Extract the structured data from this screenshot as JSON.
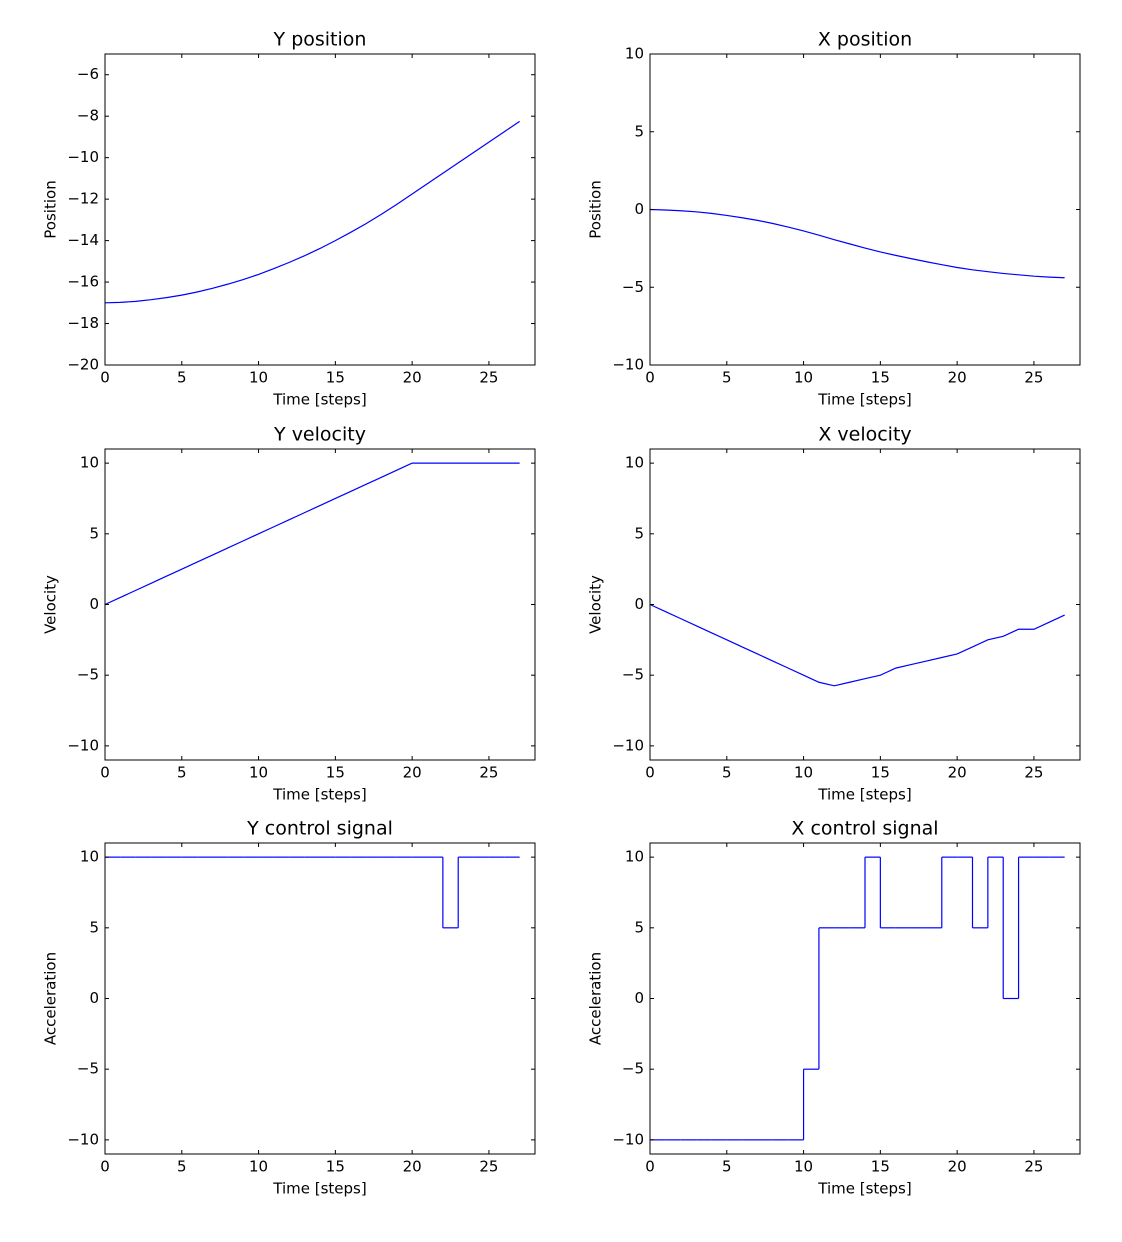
{
  "chart_data": [
    {
      "type": "line",
      "title": "Y position",
      "xlabel": "Time [steps]",
      "ylabel": "Position",
      "color": "#0000ff",
      "x": [
        0,
        1,
        2,
        3,
        4,
        5,
        6,
        7,
        8,
        9,
        10,
        11,
        12,
        13,
        14,
        15,
        16,
        17,
        18,
        19,
        20,
        21,
        22,
        23,
        24,
        25,
        26,
        27
      ],
      "values": [
        -17,
        -16.98,
        -16.93,
        -16.85,
        -16.75,
        -16.63,
        -16.48,
        -16.3,
        -16.1,
        -15.88,
        -15.63,
        -15.35,
        -15.05,
        -14.73,
        -14.38,
        -14,
        -13.6,
        -13.18,
        -12.73,
        -12.25,
        -11.75,
        -11.25,
        -10.75,
        -10.25,
        -9.75,
        -9.25,
        -8.75,
        -8.25
      ],
      "xlim": [
        0,
        28
      ],
      "xticks": [
        0,
        5,
        10,
        15,
        20,
        25
      ],
      "ylim": [
        -20,
        -5
      ],
      "yticks": [
        {
          "value": -20,
          "label": "−20"
        },
        {
          "value": -18,
          "label": "−18"
        },
        {
          "value": -16,
          "label": "−16"
        },
        {
          "value": -14,
          "label": "−14"
        },
        {
          "value": -12,
          "label": "−12"
        },
        {
          "value": -10,
          "label": "−10"
        },
        {
          "value": -8,
          "label": "−8"
        },
        {
          "value": -6,
          "label": "−6"
        }
      ]
    },
    {
      "type": "line",
      "title": "X position",
      "xlabel": "Time [steps]",
      "ylabel": "Position",
      "color": "#0000ff",
      "x": [
        0,
        1,
        2,
        3,
        4,
        5,
        6,
        7,
        8,
        9,
        10,
        11,
        12,
        13,
        14,
        15,
        16,
        17,
        18,
        19,
        20,
        21,
        22,
        23,
        24,
        25,
        26,
        27
      ],
      "values": [
        0,
        -0.03,
        -0.08,
        -0.15,
        -0.25,
        -0.38,
        -0.53,
        -0.7,
        -0.9,
        -1.13,
        -1.38,
        -1.65,
        -1.94,
        -2.21,
        -2.48,
        -2.73,
        -2.95,
        -3.16,
        -3.36,
        -3.55,
        -3.73,
        -3.88,
        -4,
        -4.11,
        -4.2,
        -4.29,
        -4.35,
        -4.39
      ],
      "xlim": [
        0,
        28
      ],
      "xticks": [
        0,
        5,
        10,
        15,
        20,
        25
      ],
      "ylim": [
        -10,
        10
      ],
      "yticks": [
        {
          "value": -10,
          "label": "−10"
        },
        {
          "value": -5,
          "label": "−5"
        },
        0,
        5,
        10
      ]
    },
    {
      "type": "line",
      "title": "Y velocity",
      "xlabel": "Time [steps]",
      "ylabel": "Velocity",
      "color": "#0000ff",
      "x": [
        0,
        1,
        2,
        3,
        4,
        5,
        6,
        7,
        8,
        9,
        10,
        11,
        12,
        13,
        14,
        15,
        16,
        17,
        18,
        19,
        20,
        21,
        22,
        23,
        24,
        25,
        26,
        27
      ],
      "values": [
        0,
        0.5,
        1,
        1.5,
        2,
        2.5,
        3,
        3.5,
        4,
        4.5,
        5,
        5.5,
        6,
        6.5,
        7,
        7.5,
        8,
        8.5,
        9,
        9.5,
        10,
        10,
        10,
        10,
        10,
        10,
        10,
        10
      ],
      "xlim": [
        0,
        28
      ],
      "xticks": [
        0,
        5,
        10,
        15,
        20,
        25
      ],
      "ylim": [
        -11,
        11
      ],
      "yticks": [
        {
          "value": -10,
          "label": "−10"
        },
        {
          "value": -5,
          "label": "−5"
        },
        0,
        5,
        10
      ]
    },
    {
      "type": "line",
      "title": "X velocity",
      "xlabel": "Time [steps]",
      "ylabel": "Velocity",
      "color": "#0000ff",
      "x": [
        0,
        1,
        2,
        3,
        4,
        5,
        6,
        7,
        8,
        9,
        10,
        11,
        12,
        13,
        14,
        15,
        16,
        17,
        18,
        19,
        20,
        21,
        22,
        23,
        24,
        25,
        26,
        27
      ],
      "values": [
        0,
        -0.5,
        -1,
        -1.5,
        -2,
        -2.5,
        -3,
        -3.5,
        -4,
        -4.5,
        -5,
        -5.5,
        -5.75,
        -5.5,
        -5.25,
        -5,
        -4.5,
        -4.25,
        -4,
        -3.75,
        -3.5,
        -3,
        -2.5,
        -2.25,
        -1.75,
        -1.75,
        -1.25,
        -0.75
      ],
      "xlim": [
        0,
        28
      ],
      "xticks": [
        0,
        5,
        10,
        15,
        20,
        25
      ],
      "ylim": [
        -11,
        11
      ],
      "yticks": [
        {
          "value": -10,
          "label": "−10"
        },
        {
          "value": -5,
          "label": "−5"
        },
        0,
        5,
        10
      ]
    },
    {
      "type": "step",
      "title": "Y control signal",
      "xlabel": "Time [steps]",
      "ylabel": "Acceleration",
      "color": "#0000ff",
      "x": [
        0,
        1,
        2,
        3,
        4,
        5,
        6,
        7,
        8,
        9,
        10,
        11,
        12,
        13,
        14,
        15,
        16,
        17,
        18,
        19,
        20,
        21,
        22,
        23,
        24,
        25,
        26,
        27
      ],
      "values": [
        10,
        10,
        10,
        10,
        10,
        10,
        10,
        10,
        10,
        10,
        10,
        10,
        10,
        10,
        10,
        10,
        10,
        10,
        10,
        10,
        10,
        10,
        5,
        10,
        10,
        10,
        10,
        10
      ],
      "xlim": [
        0,
        28
      ],
      "xticks": [
        0,
        5,
        10,
        15,
        20,
        25
      ],
      "ylim": [
        -11,
        11
      ],
      "yticks": [
        {
          "value": -10,
          "label": "−10"
        },
        {
          "value": -5,
          "label": "−5"
        },
        0,
        5,
        10
      ]
    },
    {
      "type": "step",
      "title": "X control signal",
      "xlabel": "Time [steps]",
      "ylabel": "Acceleration",
      "color": "#0000ff",
      "x": [
        0,
        1,
        2,
        3,
        4,
        5,
        6,
        7,
        8,
        9,
        10,
        11,
        12,
        13,
        14,
        15,
        16,
        17,
        18,
        19,
        20,
        21,
        22,
        23,
        24,
        25,
        26,
        27
      ],
      "values": [
        -10,
        -10,
        -10,
        -10,
        -10,
        -10,
        -10,
        -10,
        -10,
        -10,
        -5,
        5,
        5,
        5,
        10,
        5,
        5,
        5,
        5,
        10,
        10,
        5,
        10,
        0,
        10,
        10,
        10,
        10
      ],
      "xlim": [
        0,
        28
      ],
      "xticks": [
        0,
        5,
        10,
        15,
        20,
        25
      ],
      "ylim": [
        -11,
        11
      ],
      "yticks": [
        {
          "value": -10,
          "label": "−10"
        },
        {
          "value": -5,
          "label": "−5"
        },
        0,
        5,
        10
      ]
    }
  ]
}
